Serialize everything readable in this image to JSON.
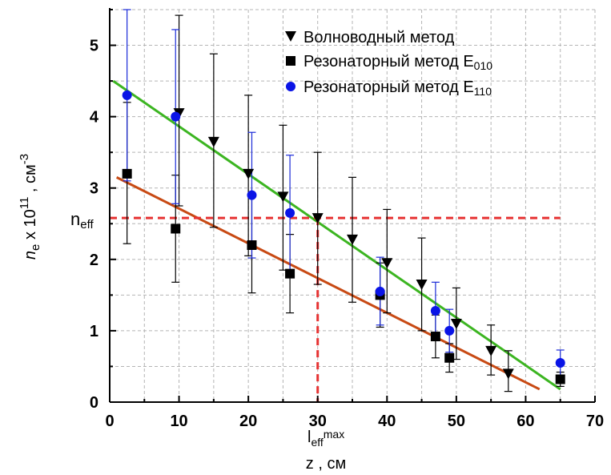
{
  "chart_data": {
    "type": "scatter",
    "xlabel": "z , см",
    "ylabel_main": "n",
    "ylabel_sub": "e",
    "ylabel_mid": " x 10",
    "ylabel_exp": "11",
    "ylabel_unit": " , см",
    "ylabel_unit_exp": "-3",
    "xlim": [
      0,
      70
    ],
    "ylim": [
      0,
      5.5
    ],
    "xticks": [
      "0",
      "10",
      "20",
      "30",
      "40",
      "50",
      "60",
      "70"
    ],
    "yticks": [
      "0",
      "1",
      "2",
      "3",
      "4",
      "5"
    ],
    "grid": true,
    "legend_position": "top-right",
    "annotations": {
      "neff_main": "n",
      "neff_sub": "eff",
      "leff_main": "l",
      "leff_sub": "eff",
      "leff_sup": "max"
    },
    "reference_lines": {
      "n_eff": 2.58,
      "l_eff_max": 30
    },
    "series": [
      {
        "name": "Волноводный метод",
        "name_sub": "",
        "marker": "triangle-down",
        "color": "#000000",
        "error_color": "#000000",
        "points": [
          {
            "x": 10,
            "y": 4.05,
            "lo": 2.75,
            "hi": 5.42
          },
          {
            "x": 15,
            "y": 3.65,
            "lo": 2.45,
            "hi": 4.88
          },
          {
            "x": 20,
            "y": 3.2,
            "lo": 2.05,
            "hi": 4.3
          },
          {
            "x": 25,
            "y": 2.88,
            "lo": 1.85,
            "hi": 3.88
          },
          {
            "x": 30,
            "y": 2.58,
            "lo": 1.65,
            "hi": 3.5
          },
          {
            "x": 35,
            "y": 2.28,
            "lo": 1.4,
            "hi": 3.15
          },
          {
            "x": 40,
            "y": 1.95,
            "lo": 1.25,
            "hi": 2.7
          },
          {
            "x": 45,
            "y": 1.65,
            "lo": 1.0,
            "hi": 2.3
          },
          {
            "x": 50,
            "y": 1.1,
            "lo": 0.6,
            "hi": 1.6
          },
          {
            "x": 55,
            "y": 0.72,
            "lo": 0.38,
            "hi": 1.08
          },
          {
            "x": 57.5,
            "y": 0.4,
            "lo": 0.15,
            "hi": 0.72
          }
        ]
      },
      {
        "name": "Резонаторный метод E",
        "name_sub": "010",
        "marker": "square",
        "color": "#000000",
        "error_color": "#000000",
        "points": [
          {
            "x": 2.5,
            "y": 3.2,
            "lo": 2.22,
            "hi": 4.2
          },
          {
            "x": 9.5,
            "y": 2.43,
            "lo": 1.68,
            "hi": 3.18
          },
          {
            "x": 20.5,
            "y": 2.2,
            "lo": 1.53,
            "hi": 2.88
          },
          {
            "x": 26,
            "y": 1.8,
            "lo": 1.25,
            "hi": 2.35
          },
          {
            "x": 39,
            "y": 1.5,
            "lo": 1.05,
            "hi": 1.95
          },
          {
            "x": 47,
            "y": 0.92,
            "lo": 0.62,
            "hi": 1.22
          },
          {
            "x": 49,
            "y": 0.62,
            "lo": 0.42,
            "hi": 0.82
          },
          {
            "x": 65,
            "y": 0.32,
            "lo": 0.22,
            "hi": 0.42
          }
        ]
      },
      {
        "name": "Резонаторный метод E",
        "name_sub": "110",
        "marker": "circle",
        "color": "#0a14e6",
        "error_color": "#1a2ad8",
        "points": [
          {
            "x": 2.5,
            "y": 4.3,
            "lo": 3.1,
            "hi": 5.5
          },
          {
            "x": 9.5,
            "y": 4.0,
            "lo": 2.78,
            "hi": 5.22
          },
          {
            "x": 20.5,
            "y": 2.9,
            "lo": 2.02,
            "hi": 3.78
          },
          {
            "x": 26,
            "y": 2.65,
            "lo": 1.85,
            "hi": 3.46
          },
          {
            "x": 39,
            "y": 1.55,
            "lo": 1.08,
            "hi": 2.03
          },
          {
            "x": 47,
            "y": 1.28,
            "lo": 0.88,
            "hi": 1.68
          },
          {
            "x": 49,
            "y": 1.0,
            "lo": 0.7,
            "hi": 1.3
          },
          {
            "x": 65,
            "y": 0.55,
            "lo": 0.38,
            "hi": 0.73
          }
        ]
      }
    ],
    "fit_lines": [
      {
        "color": "#3cb521",
        "x1": 0.5,
        "y1": 4.5,
        "x2": 65,
        "y2": 0.18
      },
      {
        "color": "#c84a14",
        "x1": 1,
        "y1": 3.15,
        "x2": 62,
        "y2": 0.18
      }
    ],
    "colors": {
      "grid": "#b4b4b4",
      "reference": "#e63232",
      "axis": "#000000"
    }
  }
}
